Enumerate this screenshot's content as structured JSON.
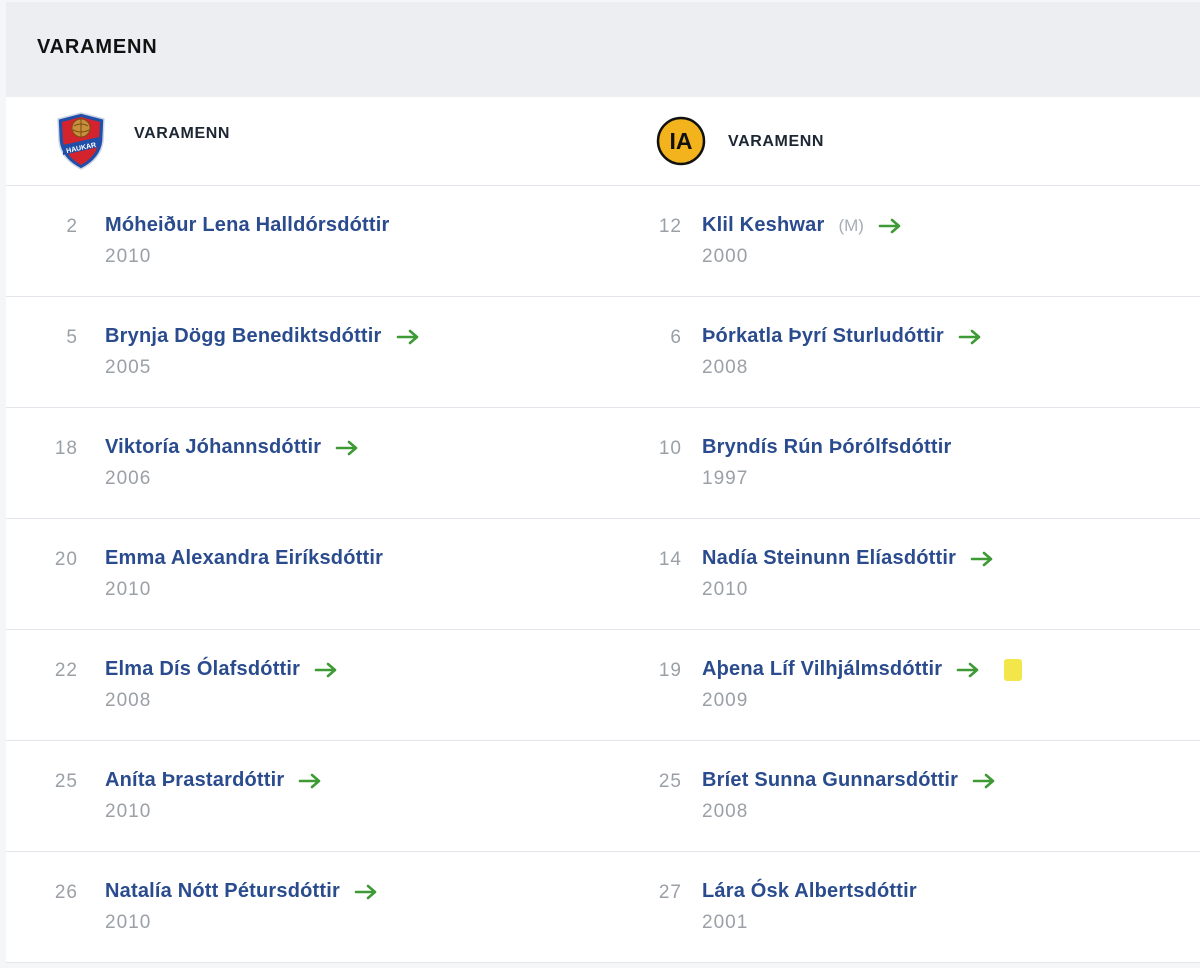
{
  "section": {
    "title": "VARAMENN"
  },
  "teams": {
    "home": {
      "label": "VARAMENN",
      "logo_text": "HAUKAR",
      "logo_icon": "haukar-crest-icon"
    },
    "away": {
      "label": "VARAMENN",
      "logo_text": "IA",
      "logo_icon": "ia-crest-icon"
    }
  },
  "colors": {
    "player_name": "#2a4b8d",
    "subbed_arrow": "#3d9a34",
    "yellow_card": "#f2e64a",
    "muted": "#9aa0a6"
  },
  "rows": [
    {
      "home": {
        "number": "2",
        "name": "Móheiður Lena Halldórsdóttir",
        "year": "2010",
        "subbed": false
      },
      "away": {
        "number": "12",
        "name": "Klil Keshwar",
        "role": "(M)",
        "year": "2000",
        "subbed": true
      }
    },
    {
      "home": {
        "number": "5",
        "name": "Brynja Dögg Benediktsdóttir",
        "year": "2005",
        "subbed": true
      },
      "away": {
        "number": "6",
        "name": "Þórkatla Þyrí Sturludóttir",
        "year": "2008",
        "subbed": true
      }
    },
    {
      "home": {
        "number": "18",
        "name": "Viktoría Jóhannsdóttir",
        "year": "2006",
        "subbed": true
      },
      "away": {
        "number": "10",
        "name": "Bryndís Rún Þórólfsdóttir",
        "year": "1997",
        "subbed": false
      }
    },
    {
      "home": {
        "number": "20",
        "name": "Emma Alexandra Eiríksdóttir",
        "year": "2010",
        "subbed": false
      },
      "away": {
        "number": "14",
        "name": "Nadía Steinunn Elíasdóttir",
        "year": "2010",
        "subbed": true
      }
    },
    {
      "home": {
        "number": "22",
        "name": "Elma Dís Ólafsdóttir",
        "year": "2008",
        "subbed": true
      },
      "away": {
        "number": "19",
        "name": "Aþena Líf Vilhjálmsdóttir",
        "year": "2009",
        "subbed": true,
        "yellow_card": true
      }
    },
    {
      "home": {
        "number": "25",
        "name": "Aníta Þrastardóttir",
        "year": "2010",
        "subbed": true
      },
      "away": {
        "number": "25",
        "name": "Bríet Sunna Gunnarsdóttir",
        "year": "2008",
        "subbed": true
      }
    },
    {
      "home": {
        "number": "26",
        "name": "Natalía Nótt Pétursdóttir",
        "year": "2010",
        "subbed": true
      },
      "away": {
        "number": "27",
        "name": "Lára Ósk Albertsdóttir",
        "year": "2001",
        "subbed": false
      }
    }
  ]
}
